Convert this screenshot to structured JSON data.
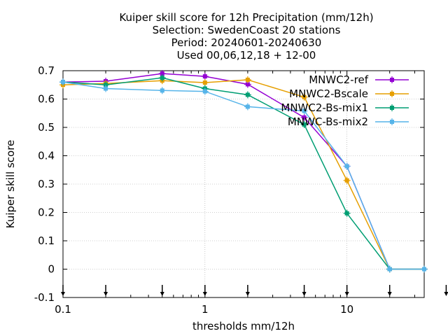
{
  "chart_data": {
    "type": "line",
    "title_lines": [
      "Kuiper skill score  for 12h Precipitation (mm/12h)",
      "Selection: SwedenCoast      20 stations",
      "Period: 20240601-20240630",
      "Used 00,06,12,18 + 12-00"
    ],
    "xlabel": "thresholds mm/12h",
    "ylabel": "Kuiper skill score",
    "x_scale": "log",
    "xlim": [
      0.1,
      35
    ],
    "ylim": [
      -0.1,
      0.7
    ],
    "x_ticks": [
      0.1,
      1,
      10
    ],
    "x_tick_labels": [
      "0.1",
      "1",
      "10"
    ],
    "y_ticks": [
      -0.1,
      0,
      0.1,
      0.2,
      0.3,
      0.4,
      0.5,
      0.6,
      0.7
    ],
    "y_tick_labels": [
      "-0.1",
      "0",
      "0.1",
      "0.2",
      "0.3",
      "0.4",
      "0.5",
      "0.6",
      "0.7"
    ],
    "grid": true,
    "legend_position": "top-right",
    "threshold_arrows_x": [
      0.1,
      0.2,
      0.5,
      1,
      2,
      5,
      10,
      20,
      50
    ],
    "x": [
      0.1,
      0.2,
      0.5,
      1,
      2,
      5,
      10,
      20,
      35
    ],
    "series": [
      {
        "name": "MNWC2-ref",
        "color": "#9400d3",
        "values": [
          0.66,
          0.663,
          0.69,
          0.68,
          0.652,
          0.535,
          0.363,
          0.0,
          0.0
        ]
      },
      {
        "name": "MNWC2-Bscale",
        "color": "#e69f00",
        "values": [
          0.65,
          0.655,
          0.665,
          0.658,
          0.668,
          0.607,
          0.313,
          0.0,
          0.0
        ]
      },
      {
        "name": "MNWC2-Bs-mix1",
        "color": "#009e73",
        "values": [
          0.66,
          0.65,
          0.675,
          0.637,
          0.615,
          0.51,
          0.197,
          0.0,
          0.0
        ]
      },
      {
        "name": "MNWC-Bs-mix2",
        "color": "#56b4e9",
        "values": [
          0.66,
          0.637,
          0.63,
          0.627,
          0.573,
          0.558,
          0.363,
          0.0,
          0.0
        ]
      }
    ]
  }
}
